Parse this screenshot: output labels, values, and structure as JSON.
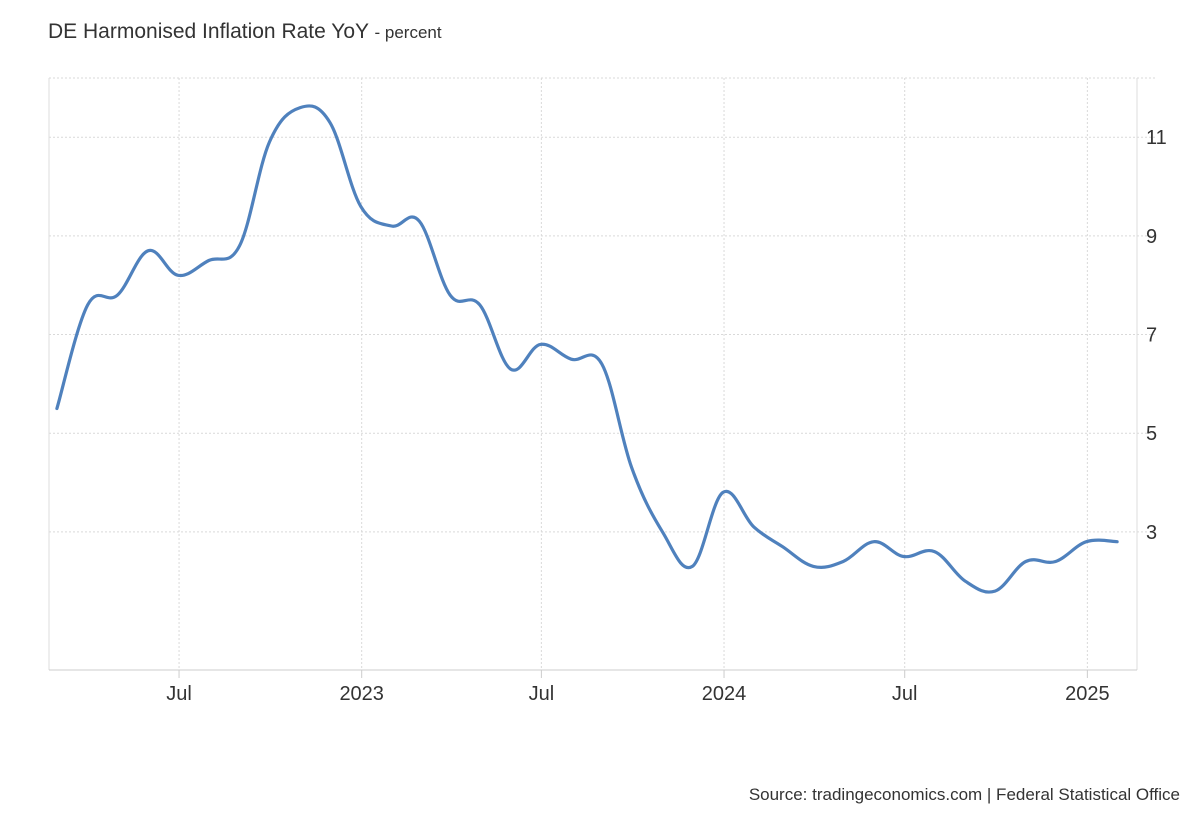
{
  "chart_data": {
    "type": "line",
    "title": "DE Harmonised Inflation Rate YoY",
    "subtitle": "- percent",
    "source": "Source: tradingeconomics.com | Federal Statistical Office",
    "ylim": [
      0.2,
      12.2
    ],
    "y_ticks": [
      3,
      5,
      7,
      9,
      11
    ],
    "y_tick_labels": [
      "3",
      "5",
      "7",
      "9",
      "11"
    ],
    "x_ticks": [
      "2022-07-01",
      "2023-01-01",
      "2023-07-01",
      "2024-01-01",
      "2024-07-01",
      "2025-01-01"
    ],
    "x_tick_labels": [
      "Jul",
      "2023",
      "Jul",
      "2024",
      "Jul",
      "2025"
    ],
    "xlim": [
      "2022-02-20",
      "2025-02-20"
    ],
    "grid": true,
    "series": [
      {
        "color": "#4f81bd",
        "x": [
          "2022-02-28",
          "2022-03-31",
          "2022-04-30",
          "2022-05-31",
          "2022-06-30",
          "2022-07-31",
          "2022-08-31",
          "2022-09-30",
          "2022-10-31",
          "2022-11-30",
          "2022-12-31",
          "2023-01-31",
          "2023-02-28",
          "2023-03-31",
          "2023-04-30",
          "2023-05-31",
          "2023-06-30",
          "2023-07-31",
          "2023-08-31",
          "2023-09-30",
          "2023-10-31",
          "2023-11-30",
          "2023-12-31",
          "2024-01-31",
          "2024-02-29",
          "2024-03-31",
          "2024-04-30",
          "2024-05-31",
          "2024-06-30",
          "2024-07-31",
          "2024-08-31",
          "2024-09-30",
          "2024-10-31",
          "2024-11-30",
          "2024-12-31",
          "2025-01-31"
        ],
        "values": [
          5.5,
          7.6,
          7.8,
          8.7,
          8.2,
          8.5,
          8.8,
          10.9,
          11.6,
          11.3,
          9.6,
          9.2,
          9.3,
          7.8,
          7.6,
          6.3,
          6.8,
          6.5,
          6.4,
          4.3,
          3.0,
          2.3,
          3.8,
          3.1,
          2.7,
          2.3,
          2.4,
          2.8,
          2.5,
          2.6,
          2.0,
          1.8,
          2.4,
          2.4,
          2.8,
          2.8
        ]
      }
    ]
  }
}
